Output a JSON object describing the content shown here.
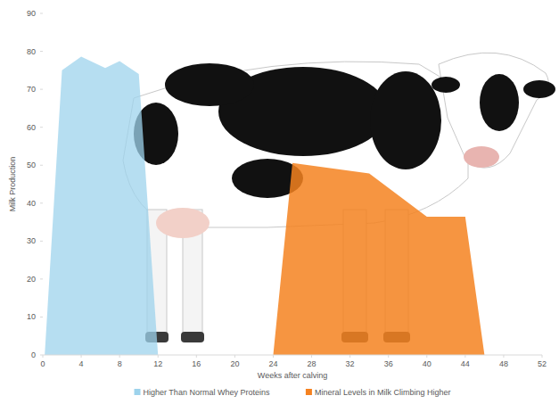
{
  "chart_data": {
    "type": "area",
    "x_label": "Weeks after calving",
    "y_label": "Milk Production",
    "xlim": [
      0,
      52
    ],
    "xticks": [
      0,
      4,
      8,
      12,
      16,
      20,
      24,
      28,
      32,
      36,
      40,
      44,
      48,
      52
    ],
    "ylim": [
      0,
      90
    ],
    "yticks": [
      0,
      10,
      20,
      30,
      40,
      50,
      60,
      70,
      80,
      90
    ],
    "grid": false,
    "legend": "bottom",
    "series": [
      {
        "name": "Higher Than Normal Whey Proteins",
        "color": "#9dd3ec",
        "x": [
          0.2,
          2,
          4,
          6.5,
          8,
          10,
          12
        ],
        "values": [
          0,
          75,
          78.6,
          75.6,
          77.4,
          74,
          0
        ]
      },
      {
        "name": "Mineral Levels in Milk Climbing Higher",
        "color": "#f58220",
        "x": [
          24,
          26,
          34,
          40,
          44,
          46
        ],
        "values": [
          0,
          50.6,
          47.8,
          36.4,
          36.4,
          0
        ]
      }
    ]
  }
}
